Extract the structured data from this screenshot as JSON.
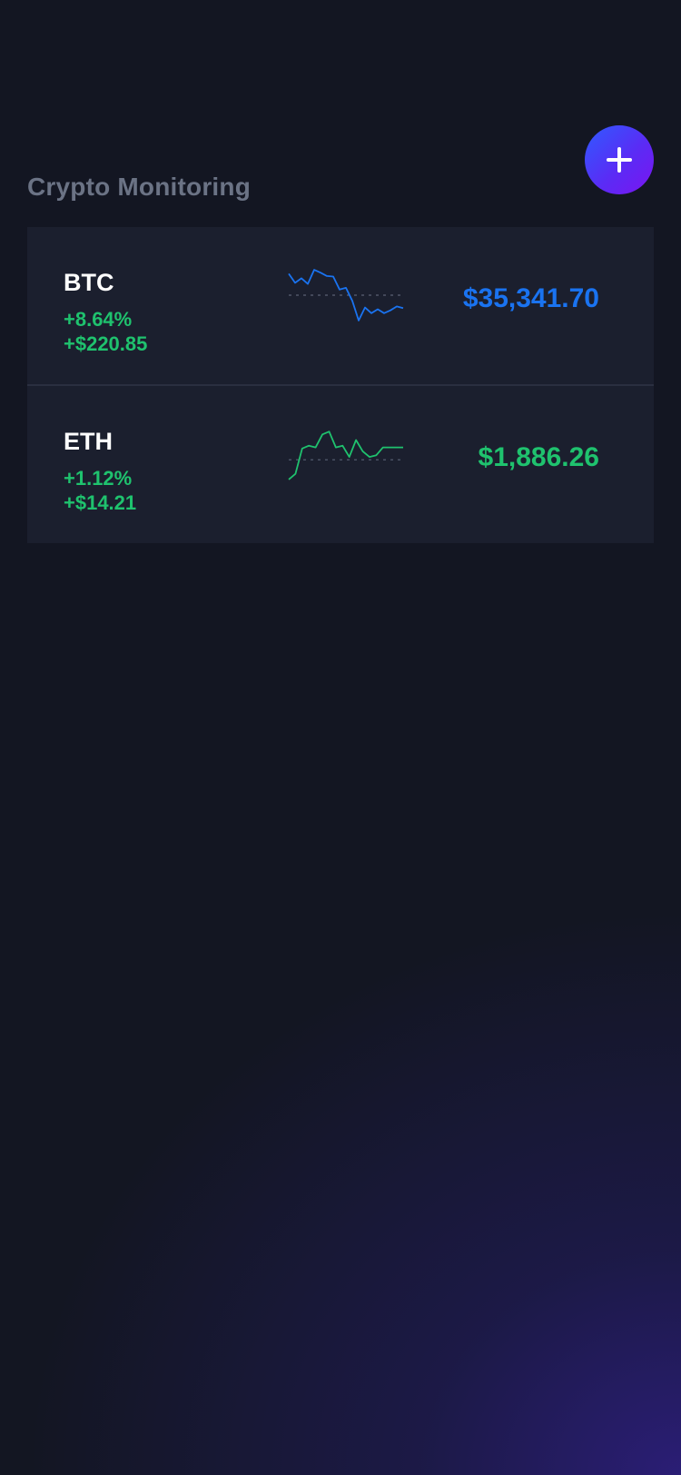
{
  "header": {
    "title": "Crypto Monitoring",
    "add_button_icon": "plus-icon"
  },
  "colors": {
    "background": "#131622",
    "card": "#1b1f2e",
    "positive": "#1fc26e",
    "btc_accent": "#1a73f0",
    "eth_accent": "#1fc26e",
    "title": "#6b7385"
  },
  "coins": [
    {
      "symbol": "BTC",
      "change_percent": "+8.64%",
      "change_amount": "+$220.85",
      "price": "$35,341.70",
      "line_color": "#1a73f0",
      "price_color": "#1a73f0",
      "change_color": "#1fc26e",
      "sparkline": [
        0.88,
        0.72,
        0.8,
        0.7,
        0.95,
        0.9,
        0.84,
        0.83,
        0.6,
        0.63,
        0.4,
        0.05,
        0.28,
        0.18,
        0.25,
        0.18,
        0.23,
        0.3,
        0.27
      ],
      "sparkline_baseline": 0.5
    },
    {
      "symbol": "ETH",
      "change_percent": "+1.12%",
      "change_amount": "+$14.21",
      "price": "$1,886.26",
      "line_color": "#1fc26e",
      "price_color": "#1fc26e",
      "change_color": "#1fc26e",
      "sparkline": [
        0.05,
        0.15,
        0.6,
        0.65,
        0.62,
        0.85,
        0.9,
        0.62,
        0.65,
        0.45,
        0.75,
        0.55,
        0.45,
        0.48,
        0.62,
        0.62,
        0.62,
        0.62
      ],
      "sparkline_baseline": 0.4
    }
  ]
}
